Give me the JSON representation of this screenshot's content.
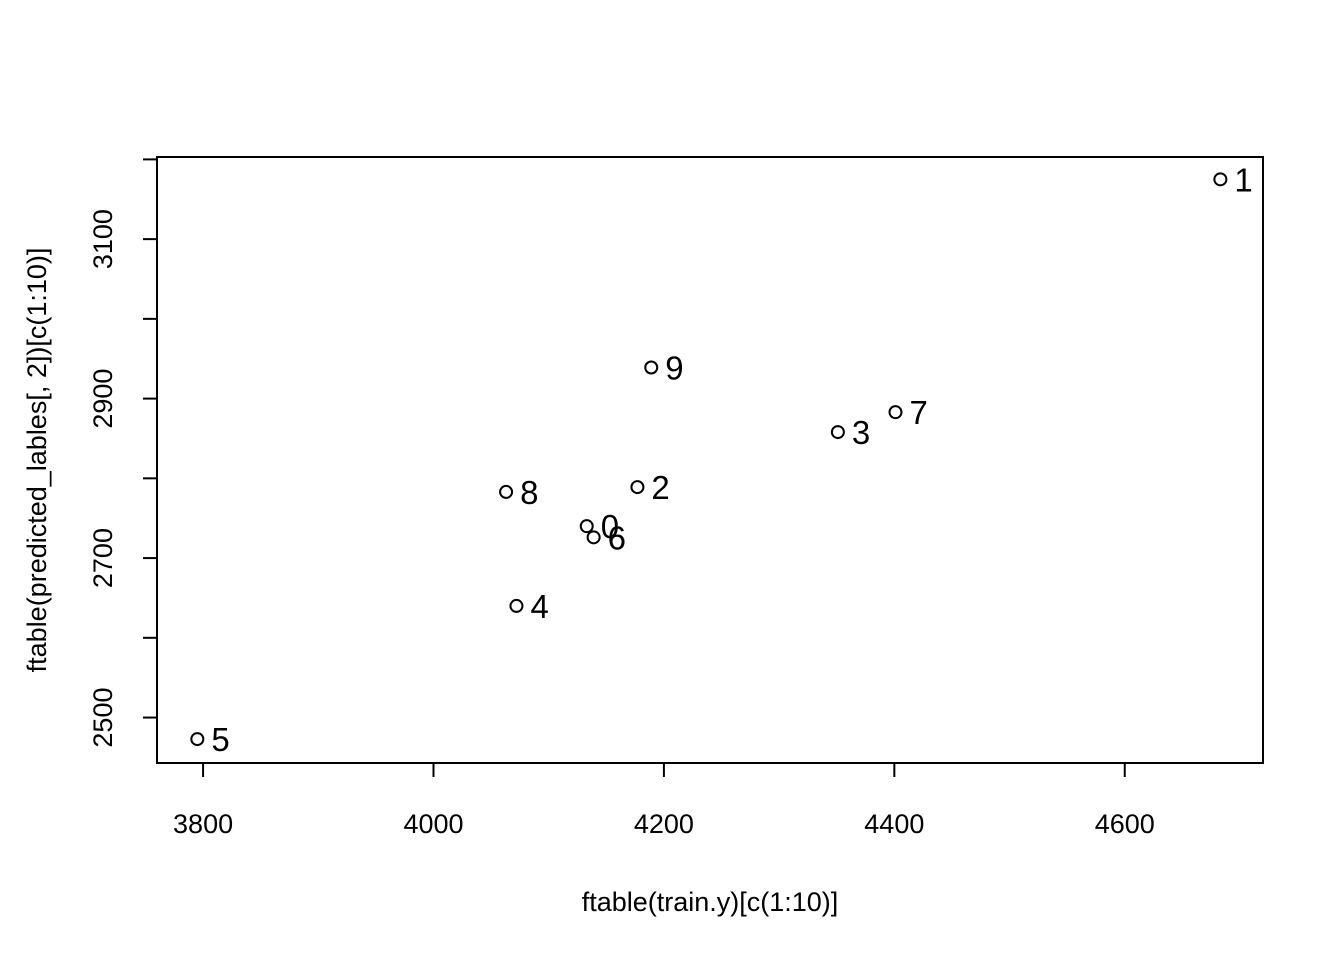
{
  "chart_data": {
    "type": "scatter",
    "title": "",
    "xlabel": "ftable(train.y)[c(1:10)]",
    "ylabel": "ftable(predicted_lables[, 2])[c(1:10)]",
    "xlim": [
      3760,
      4720
    ],
    "ylim": [
      2443,
      3203
    ],
    "xticks": [
      3800,
      4000,
      4200,
      4400,
      4600
    ],
    "yticks": [
      2500,
      2600,
      2700,
      2800,
      2900,
      3000,
      3100,
      3200
    ],
    "ytick_labels": [
      "2500",
      "",
      "2700",
      "",
      "2900",
      "",
      "3100",
      ""
    ],
    "points": [
      {
        "label": "0",
        "x": 4133,
        "y": 2740
      },
      {
        "label": "1",
        "x": 4683,
        "y": 3175
      },
      {
        "label": "2",
        "x": 4177,
        "y": 2789
      },
      {
        "label": "3",
        "x": 4351,
        "y": 2858
      },
      {
        "label": "4",
        "x": 4072,
        "y": 2640
      },
      {
        "label": "5",
        "x": 3795,
        "y": 2473
      },
      {
        "label": "6",
        "x": 4139,
        "y": 2726
      },
      {
        "label": "7",
        "x": 4401,
        "y": 2883
      },
      {
        "label": "8",
        "x": 4063,
        "y": 2783
      },
      {
        "label": "9",
        "x": 4189,
        "y": 2939
      }
    ],
    "grid": false,
    "legend": "none"
  }
}
